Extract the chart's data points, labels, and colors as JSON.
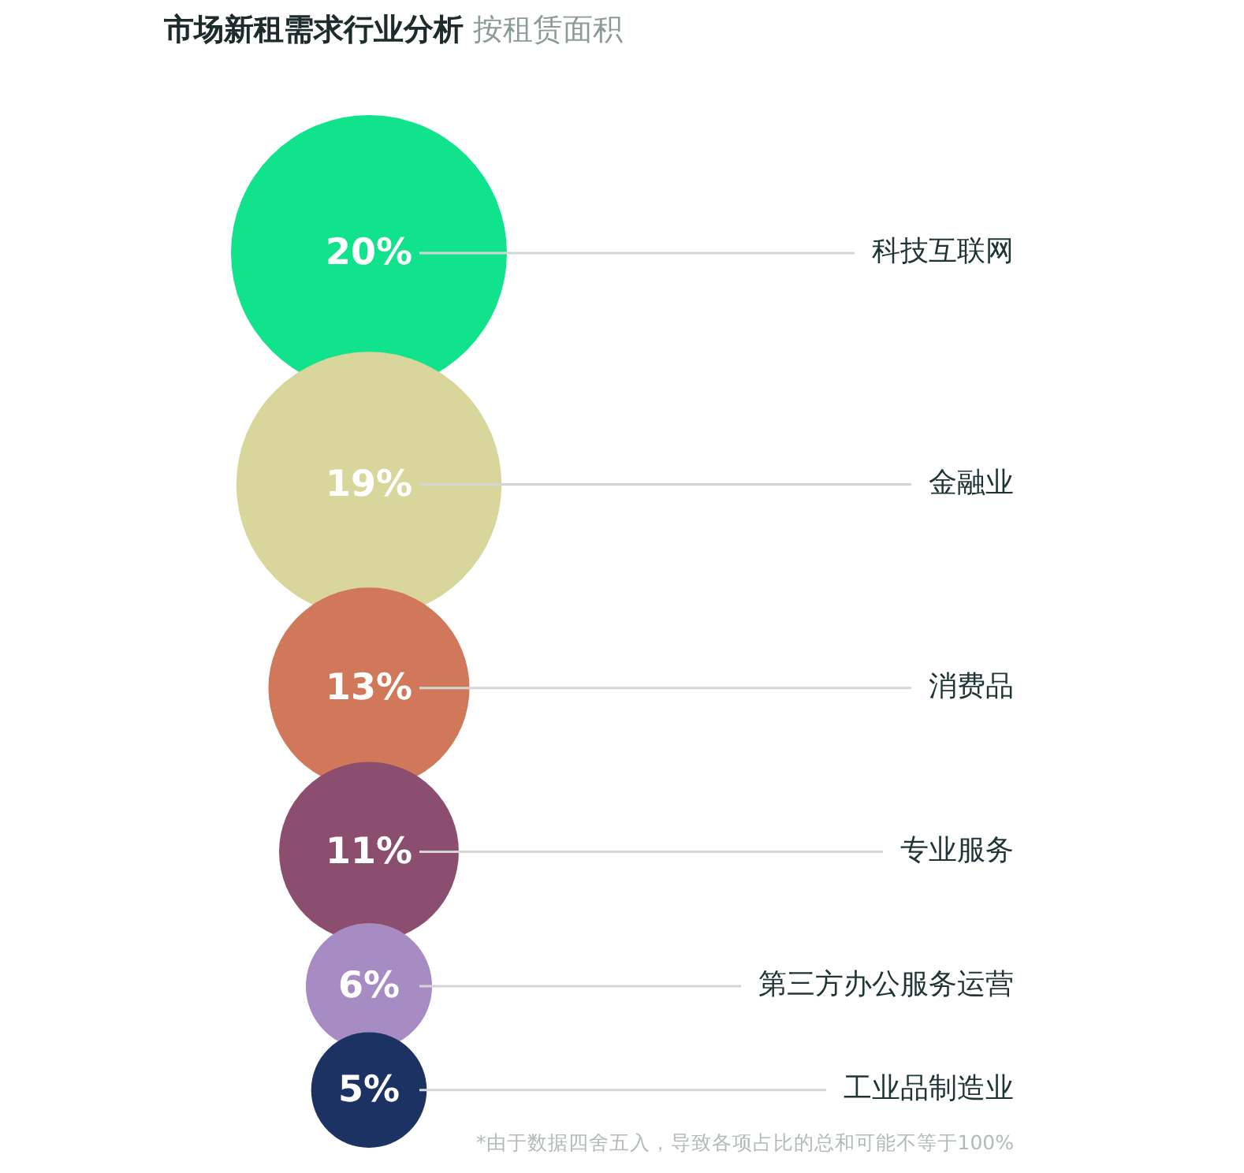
{
  "chart_data": {
    "type": "other",
    "title": "市场新租需求行业分析",
    "subtitle": "按租赁面积",
    "categories": [
      "科技互联网",
      "金融业",
      "消费品",
      "专业服务",
      "第三方办公服务运营",
      "工业品制造业"
    ],
    "values": [
      20,
      19,
      13,
      11,
      6,
      5
    ],
    "value_labels": [
      "20%",
      "19%",
      "13%",
      "11%",
      "6%",
      "5%"
    ],
    "colors": [
      "#11e38d",
      "#d8d69b",
      "#d1785a",
      "#8b4e6f",
      "#a78bc3",
      "#1b3263"
    ],
    "annotations": [
      "*由于数据四舍五入，导致各项占比的总和可能不等于100%"
    ]
  }
}
